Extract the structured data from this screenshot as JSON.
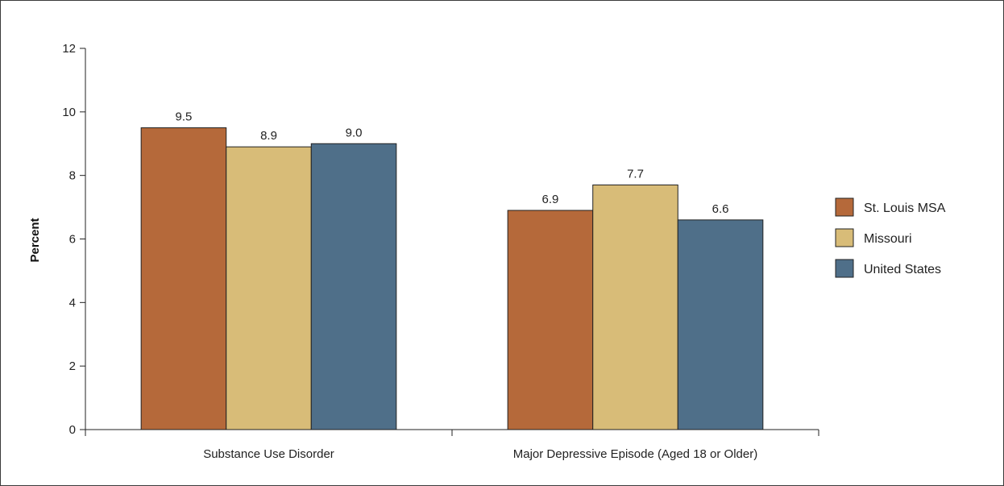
{
  "chart_data": {
    "type": "bar",
    "categories": [
      "Substance Use Disorder",
      "Major Depressive Episode (Aged 18 or Older)"
    ],
    "series": [
      {
        "name": "St. Louis MSA",
        "values": [
          9.5,
          6.9
        ],
        "color": "#b5693a"
      },
      {
        "name": "Missouri",
        "values": [
          8.9,
          7.7
        ],
        "color": "#d8bc78"
      },
      {
        "name": "United States",
        "values": [
          9.0,
          6.6
        ],
        "color": "#4f6f89"
      }
    ],
    "value_labels": [
      [
        "9.5",
        "6.9"
      ],
      [
        "8.9",
        "7.7"
      ],
      [
        "9.0",
        "6.6"
      ]
    ],
    "title": "",
    "xlabel": "",
    "ylabel": "Percent",
    "ylim": [
      0,
      12
    ],
    "yticks": [
      0,
      2,
      4,
      6,
      8,
      10,
      12
    ],
    "grid": false,
    "legend_position": "right"
  }
}
